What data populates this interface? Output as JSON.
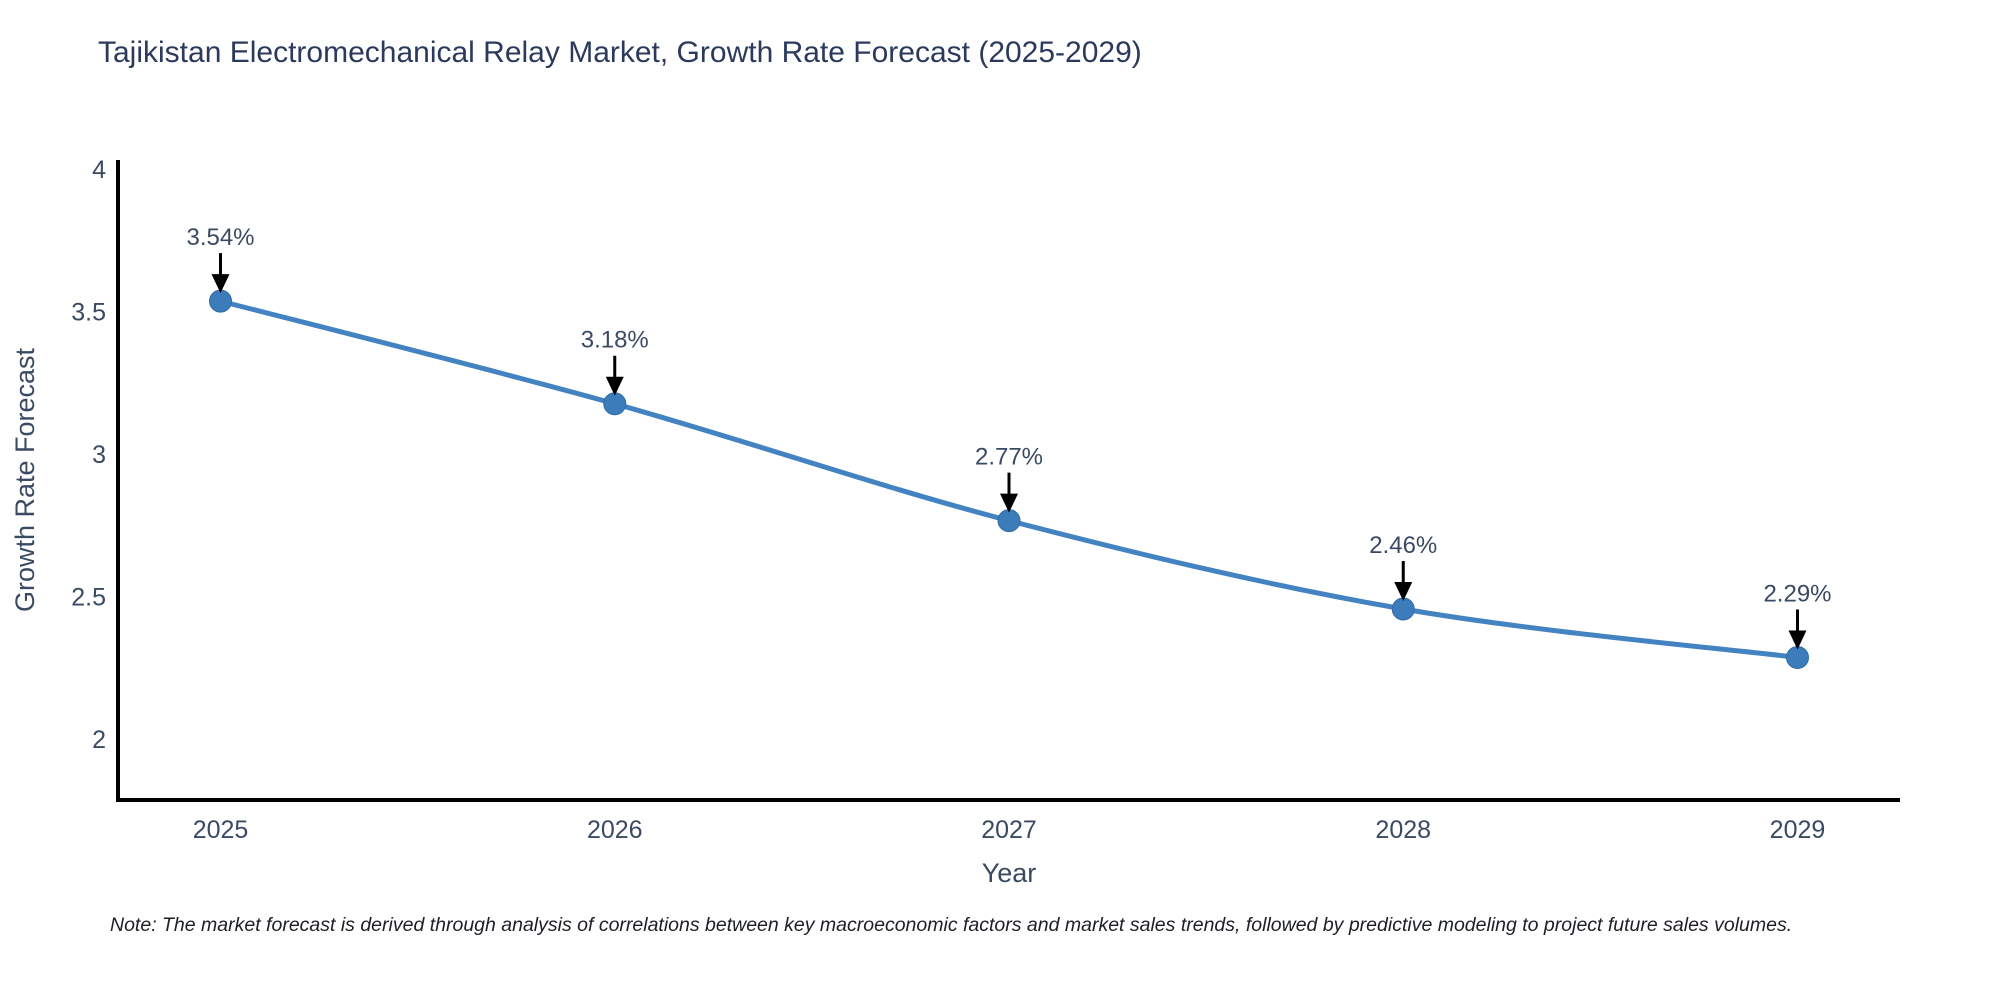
{
  "title": "Tajikistan Electromechanical Relay Market, Growth Rate Forecast (2025-2029)",
  "note": "Note: The market forecast is derived through analysis of correlations between key macroeconomic factors and market sales trends, followed by predictive modeling to project future sales volumes.",
  "chart_data": {
    "type": "line",
    "title": "Tajikistan Electromechanical Relay Market, Growth Rate Forecast (2025-2029)",
    "x": [
      2025,
      2026,
      2027,
      2028,
      2029
    ],
    "values": [
      3.54,
      3.18,
      2.77,
      2.46,
      2.29
    ],
    "point_labels": [
      "3.54%",
      "3.18%",
      "2.77%",
      "2.46%",
      "2.29%"
    ],
    "xlabel": "Year",
    "ylabel": "Growth Rate Forecast",
    "x_tick_labels": [
      "2025",
      "2026",
      "2027",
      "2028",
      "2029"
    ],
    "y_ticks": [
      4,
      3.5,
      3,
      2.5,
      2
    ],
    "ylim": [
      1.79,
      4.035
    ],
    "xlim": [
      2024.74,
      2029.26
    ],
    "grid": false,
    "legend": "none",
    "line_color": "#4383c2",
    "marker_color": "#3d7cba",
    "marker_edge_color": "#2f6ba8",
    "arrow_color": "#000000",
    "axis_color": "#000000",
    "tick_color": "#3b4a63",
    "axis_title_color": "#3b4a63",
    "annotation_color": "#3b4a63",
    "title_color": "#2b3a5c"
  }
}
